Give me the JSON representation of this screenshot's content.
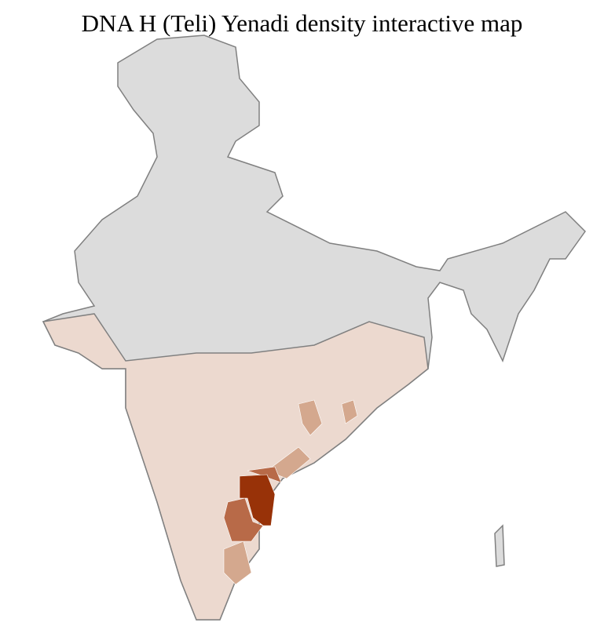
{
  "title": "DNA H (Teli) Yenadi density interactive map",
  "colors": {
    "no_data": "#dcdcdc",
    "low": "#ecd9cf",
    "medium": "#d4a88e",
    "high": "#b86a48",
    "highest": "#983208",
    "border": "#808080"
  }
}
